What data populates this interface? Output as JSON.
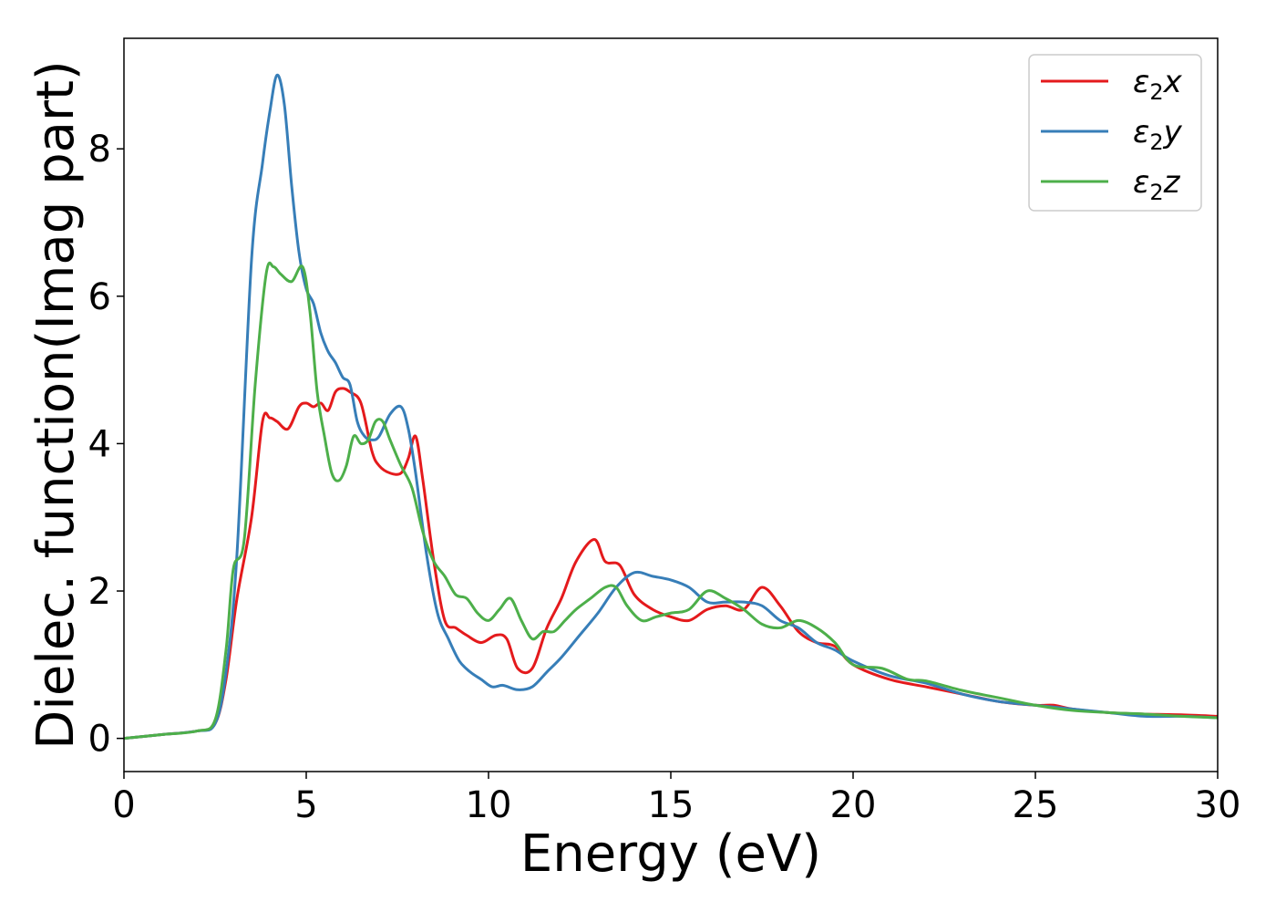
{
  "chart_data": {
    "type": "line",
    "xlabel": "Energy (eV)",
    "ylabel": "Dielec. function(Imag part)",
    "xlim": [
      0,
      30
    ],
    "ylim": [
      -0.45,
      9.5
    ],
    "xticks": [
      0,
      5,
      10,
      15,
      20,
      25,
      30
    ],
    "yticks": [
      0,
      2,
      4,
      6,
      8
    ],
    "grid": false,
    "legend_position": "top-right",
    "series": [
      {
        "name": "ε₂x",
        "legend_base": "ε",
        "legend_sub": "2",
        "legend_suffix": "x",
        "color": "#e41a1c",
        "x": [
          0,
          1,
          2,
          2.5,
          2.8,
          3.1,
          3.5,
          3.8,
          4.0,
          4.2,
          4.5,
          4.8,
          5.0,
          5.2,
          5.4,
          5.6,
          5.8,
          6.0,
          6.2,
          6.5,
          6.8,
          7.0,
          7.3,
          7.6,
          7.8,
          8.0,
          8.2,
          8.5,
          8.8,
          9.1,
          9.4,
          9.8,
          10.2,
          10.5,
          10.8,
          11.2,
          11.6,
          12.0,
          12.4,
          12.9,
          13.2,
          13.6,
          14.0,
          14.5,
          15.0,
          15.5,
          16.0,
          16.5,
          17.0,
          17.5,
          18.0,
          18.5,
          19.0,
          19.5,
          20.0,
          21.0,
          22.0,
          23.0,
          24.0,
          25.0,
          25.5,
          26.0,
          27.0,
          28.0,
          29.0,
          30.0
        ],
        "y": [
          0.0,
          0.05,
          0.1,
          0.2,
          0.8,
          1.9,
          3.0,
          4.3,
          4.35,
          4.3,
          4.2,
          4.5,
          4.55,
          4.5,
          4.55,
          4.45,
          4.7,
          4.75,
          4.7,
          4.55,
          3.9,
          3.7,
          3.6,
          3.6,
          3.8,
          4.1,
          3.5,
          2.4,
          1.6,
          1.5,
          1.4,
          1.3,
          1.4,
          1.35,
          0.95,
          0.95,
          1.5,
          1.9,
          2.4,
          2.7,
          2.4,
          2.35,
          1.95,
          1.75,
          1.65,
          1.6,
          1.75,
          1.8,
          1.75,
          2.05,
          1.8,
          1.45,
          1.3,
          1.25,
          1.0,
          0.8,
          0.7,
          0.6,
          0.5,
          0.45,
          0.45,
          0.4,
          0.35,
          0.33,
          0.32,
          0.3
        ]
      },
      {
        "name": "ε₂y",
        "legend_base": "ε",
        "legend_sub": "2",
        "legend_suffix": "y",
        "color": "#377eb8",
        "x": [
          0,
          1,
          2,
          2.5,
          2.8,
          3.1,
          3.5,
          3.8,
          4.0,
          4.2,
          4.4,
          4.6,
          4.8,
          5.0,
          5.2,
          5.4,
          5.6,
          5.8,
          6.0,
          6.2,
          6.4,
          6.6,
          6.8,
          7.0,
          7.3,
          7.6,
          7.8,
          8.0,
          8.3,
          8.6,
          8.9,
          9.2,
          9.5,
          9.8,
          10.1,
          10.4,
          10.8,
          11.2,
          11.6,
          12.0,
          12.5,
          13.0,
          13.5,
          14.0,
          14.5,
          15.0,
          15.5,
          16.0,
          16.5,
          17.0,
          17.5,
          18.0,
          18.5,
          19.0,
          19.5,
          20.0,
          21.0,
          22.0,
          23.0,
          24.0,
          25.0,
          26.0,
          27.0,
          28.0,
          29.0,
          30.0
        ],
        "y": [
          0.0,
          0.05,
          0.1,
          0.2,
          0.9,
          2.5,
          6.5,
          7.8,
          8.5,
          9.0,
          8.6,
          7.5,
          6.6,
          6.1,
          5.9,
          5.5,
          5.25,
          5.1,
          4.9,
          4.8,
          4.3,
          4.1,
          4.05,
          4.1,
          4.4,
          4.5,
          4.2,
          3.6,
          2.5,
          1.7,
          1.35,
          1.05,
          0.9,
          0.8,
          0.7,
          0.72,
          0.66,
          0.7,
          0.9,
          1.1,
          1.4,
          1.7,
          2.05,
          2.25,
          2.2,
          2.15,
          2.05,
          1.85,
          1.85,
          1.85,
          1.8,
          1.6,
          1.5,
          1.3,
          1.2,
          1.05,
          0.85,
          0.75,
          0.6,
          0.5,
          0.45,
          0.4,
          0.35,
          0.3,
          0.3,
          0.28
        ]
      },
      {
        "name": "ε₂z",
        "legend_base": "ε",
        "legend_sub": "2",
        "legend_suffix": "z",
        "color": "#4daf4a",
        "x": [
          0,
          1,
          2,
          2.5,
          2.8,
          3.0,
          3.3,
          3.6,
          3.9,
          4.1,
          4.3,
          4.6,
          4.9,
          5.1,
          5.3,
          5.5,
          5.7,
          5.9,
          6.1,
          6.3,
          6.5,
          6.7,
          6.9,
          7.1,
          7.3,
          7.6,
          7.9,
          8.2,
          8.5,
          8.8,
          9.1,
          9.4,
          9.7,
          10.0,
          10.3,
          10.6,
          10.9,
          11.2,
          11.5,
          11.8,
          12.1,
          12.4,
          12.8,
          13.2,
          13.5,
          13.8,
          14.2,
          14.6,
          15.0,
          15.5,
          16.0,
          16.5,
          17.0,
          17.5,
          18.0,
          18.5,
          19.0,
          19.5,
          20.0,
          20.8,
          21.5,
          22.0,
          23.0,
          24.0,
          25.0,
          26.0,
          27.0,
          28.0,
          29.0,
          30.0
        ],
        "y": [
          0.0,
          0.05,
          0.1,
          0.25,
          1.2,
          2.3,
          2.7,
          4.8,
          6.3,
          6.4,
          6.3,
          6.2,
          6.4,
          5.8,
          4.7,
          4.1,
          3.6,
          3.5,
          3.7,
          4.1,
          4.0,
          4.05,
          4.3,
          4.3,
          4.05,
          3.7,
          3.4,
          2.8,
          2.4,
          2.2,
          1.95,
          1.9,
          1.7,
          1.6,
          1.75,
          1.9,
          1.6,
          1.35,
          1.45,
          1.45,
          1.6,
          1.75,
          1.9,
          2.05,
          2.05,
          1.8,
          1.6,
          1.65,
          1.7,
          1.75,
          2.0,
          1.9,
          1.75,
          1.55,
          1.5,
          1.6,
          1.5,
          1.3,
          1.0,
          0.95,
          0.8,
          0.78,
          0.65,
          0.55,
          0.45,
          0.38,
          0.35,
          0.33,
          0.3,
          0.28
        ]
      }
    ]
  }
}
